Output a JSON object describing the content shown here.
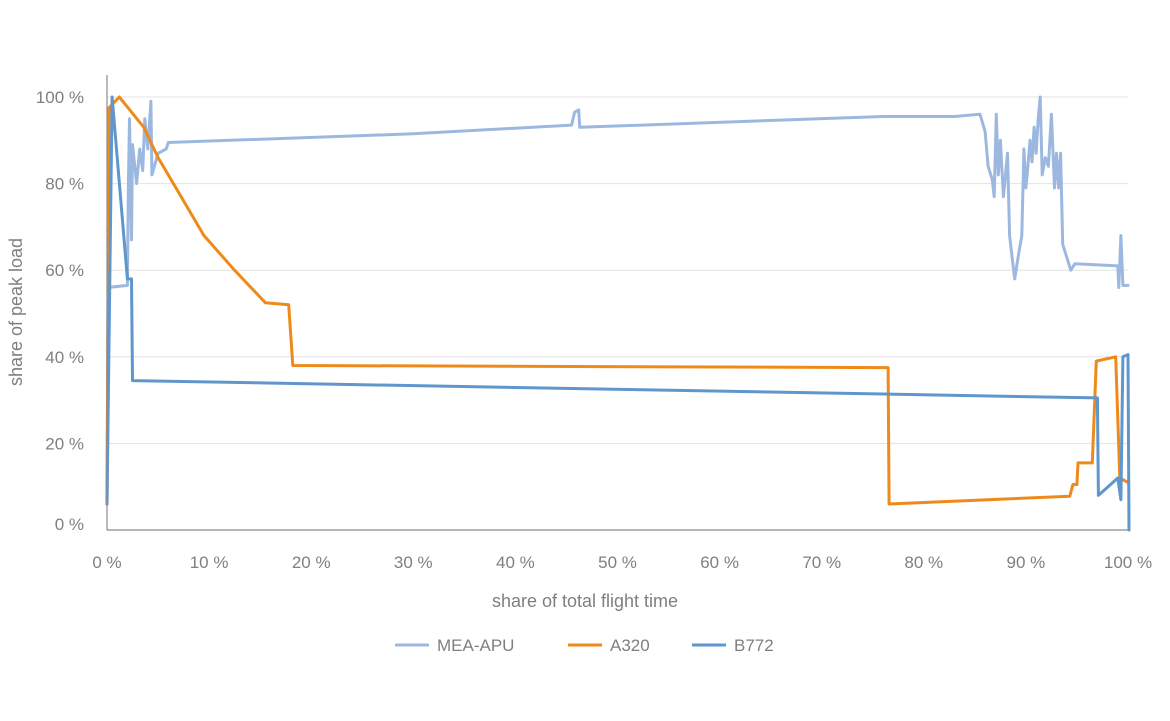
{
  "chart_data": {
    "type": "line",
    "xlabel": "share of total flight time",
    "ylabel": "share of peak load",
    "xlim": [
      0,
      100
    ],
    "ylim": [
      0,
      100
    ],
    "x_ticks": [
      "0 %",
      "10 %",
      "20 %",
      "30 %",
      "40 %",
      "50 %",
      "60 %",
      "70 %",
      "80 %",
      "90 %",
      "100 %"
    ],
    "y_ticks": [
      "0 %",
      "20 %",
      "40 %",
      "60 %",
      "80 %",
      "100 %"
    ],
    "grid": true,
    "legend_position": "bottom",
    "series": [
      {
        "name": "MEA-APU",
        "color": "#9db8e0",
        "points": [
          [
            0,
            6
          ],
          [
            0.1,
            56
          ],
          [
            2,
            56.5
          ],
          [
            2.1,
            80
          ],
          [
            2.2,
            95
          ],
          [
            2.4,
            67
          ],
          [
            2.5,
            89
          ],
          [
            2.9,
            80
          ],
          [
            3.2,
            88
          ],
          [
            3.5,
            83
          ],
          [
            3.7,
            95
          ],
          [
            4.0,
            88
          ],
          [
            4.3,
            99
          ],
          [
            4.4,
            82
          ],
          [
            5.0,
            87
          ],
          [
            5.8,
            88
          ],
          [
            6.0,
            89.5
          ],
          [
            30,
            91.5
          ],
          [
            45.5,
            93.5
          ],
          [
            45.8,
            96.5
          ],
          [
            46.2,
            97
          ],
          [
            46.3,
            93
          ],
          [
            76,
            95.5
          ],
          [
            83,
            95.5
          ],
          [
            85.5,
            96
          ],
          [
            86.0,
            92
          ],
          [
            86.3,
            84
          ],
          [
            86.7,
            81
          ],
          [
            86.9,
            77
          ],
          [
            87.1,
            96
          ],
          [
            87.3,
            82
          ],
          [
            87.5,
            90
          ],
          [
            87.8,
            77
          ],
          [
            88.0,
            82
          ],
          [
            88.2,
            87
          ],
          [
            88.4,
            68
          ],
          [
            88.7,
            62
          ],
          [
            88.9,
            58
          ],
          [
            89.3,
            64
          ],
          [
            89.6,
            68
          ],
          [
            89.8,
            88
          ],
          [
            90.0,
            79
          ],
          [
            90.2,
            84
          ],
          [
            90.4,
            90
          ],
          [
            90.6,
            85
          ],
          [
            90.8,
            93
          ],
          [
            91.0,
            87
          ],
          [
            91.2,
            95
          ],
          [
            91.4,
            100
          ],
          [
            91.6,
            82
          ],
          [
            91.9,
            86
          ],
          [
            92.2,
            84
          ],
          [
            92.5,
            96
          ],
          [
            92.8,
            79
          ],
          [
            93.0,
            87
          ],
          [
            93.2,
            79
          ],
          [
            93.4,
            87
          ],
          [
            93.6,
            66
          ],
          [
            94.4,
            60
          ],
          [
            94.8,
            61.5
          ],
          [
            99.0,
            61
          ],
          [
            99.1,
            56
          ],
          [
            99.3,
            68
          ],
          [
            99.5,
            56.5
          ],
          [
            100,
            56.5
          ]
        ]
      },
      {
        "name": "A320",
        "color": "#ee8a1a",
        "points": [
          [
            0,
            6
          ],
          [
            0.2,
            97.5
          ],
          [
            1.2,
            100
          ],
          [
            3.6,
            93
          ],
          [
            5.0,
            86
          ],
          [
            7.0,
            78
          ],
          [
            9.5,
            68
          ],
          [
            12.5,
            60
          ],
          [
            15.5,
            52.5
          ],
          [
            17.8,
            52
          ],
          [
            18.2,
            38
          ],
          [
            76.5,
            37.5
          ],
          [
            76.6,
            6
          ],
          [
            94.3,
            7.8
          ],
          [
            94.6,
            10.5
          ],
          [
            95.0,
            10.5
          ],
          [
            95.1,
            15.5
          ],
          [
            96.5,
            15.5
          ],
          [
            96.9,
            39
          ],
          [
            98.8,
            40
          ],
          [
            99.2,
            12
          ],
          [
            100,
            11
          ]
        ]
      },
      {
        "name": "B772",
        "color": "#5f96cc",
        "points": [
          [
            0,
            6
          ],
          [
            0.5,
            100
          ],
          [
            2.0,
            58
          ],
          [
            2.4,
            58
          ],
          [
            2.5,
            34.5
          ],
          [
            97,
            30.5
          ],
          [
            97.1,
            8
          ],
          [
            99.0,
            12
          ],
          [
            99.3,
            7
          ],
          [
            99.5,
            40
          ],
          [
            100,
            40.5
          ],
          [
            100.1,
            0
          ]
        ]
      }
    ]
  }
}
